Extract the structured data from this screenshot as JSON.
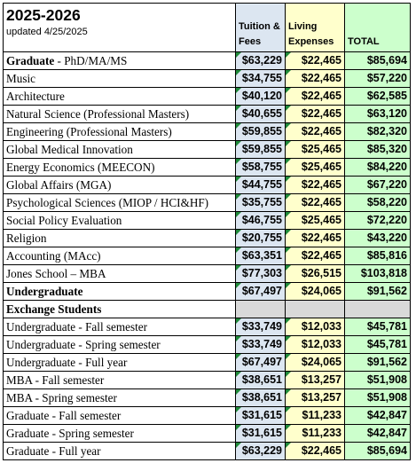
{
  "header": {
    "title": "2025-2026",
    "subtitle": "updated 4/25/2025",
    "col_tuition": [
      "Tuition &",
      "Fees"
    ],
    "col_living": [
      "Living",
      "Expenses"
    ],
    "col_total": "TOTAL"
  },
  "colors": {
    "tuition_bg": "#dce6f1",
    "living_bg": "#ffffcc",
    "total_bg": "#ccffcc",
    "empty_bg": "#d9d9d9",
    "error_marker": "#1f8a3a"
  },
  "rows": [
    {
      "name": "Graduate",
      "suffix": " - PhD/MA/MS",
      "tuition": "$63,229",
      "living": "$22,465",
      "total": "$85,694",
      "bold": "prefix"
    },
    {
      "name": "Music",
      "tuition": "$34,755",
      "living": "$22,465",
      "total": "$57,220"
    },
    {
      "name": "Architecture",
      "tuition": "$40,120",
      "living": "$22,465",
      "total": "$62,585"
    },
    {
      "name": "Natural Science (Professional Masters)",
      "tuition": "$40,655",
      "living": "$22,465",
      "total": "$63,120"
    },
    {
      "name": "Engineering (Professional Masters)",
      "tuition": "$59,855",
      "living": "$22,465",
      "total": "$82,320"
    },
    {
      "name": "Global Medical Innovation",
      "tuition": "$59,855",
      "living": "$25,465",
      "total": "$85,320"
    },
    {
      "name": "Energy Economics (MEECON)",
      "tuition": "$58,755",
      "living": "$25,465",
      "total": "$84,220"
    },
    {
      "name": "Global Affairs (MGA)",
      "tuition": "$44,755",
      "living": "$22,465",
      "total": "$67,220"
    },
    {
      "name": "Psychological Sciences (MIOP / HCI&HF)",
      "tuition": "$35,755",
      "living": "$22,465",
      "total": "$58,220"
    },
    {
      "name": "Social Policy Evaluation",
      "tuition": "$46,755",
      "living": "$25,465",
      "total": "$72,220"
    },
    {
      "name": "Religion",
      "tuition": "$20,755",
      "living": "$22,465",
      "total": "$43,220"
    },
    {
      "name": "Accounting (MAcc)",
      "tuition": "$63,351",
      "living": "$22,465",
      "total": "$85,816"
    },
    {
      "name": "Jones School – MBA",
      "tuition": "$77,303",
      "living": "$26,515",
      "total": "$103,818"
    },
    {
      "name": "Undergraduate",
      "tuition": "$67,497",
      "living": "$24,065",
      "total": "$91,562",
      "bold": "all"
    },
    {
      "name": "Exchange Students",
      "tuition": "",
      "living": "",
      "total": "",
      "bold": "all",
      "section": true
    },
    {
      "name": "Undergraduate - Fall semester",
      "tuition": "$33,749",
      "living": "$12,033",
      "total": "$45,781"
    },
    {
      "name": "Undergraduate - Spring semester",
      "tuition": "$33,749",
      "living": "$12,033",
      "total": "$45,781"
    },
    {
      "name": "Undergraduate - Full year",
      "tuition": "$67,497",
      "living": "$24,065",
      "total": "$91,562"
    },
    {
      "name": "MBA - Fall semester",
      "tuition": "$38,651",
      "living": "$13,257",
      "total": "$51,908"
    },
    {
      "name": "MBA - Spring semester",
      "tuition": "$38,651",
      "living": "$13,257",
      "total": "$51,908"
    },
    {
      "name": "Graduate - Fall semester",
      "tuition": "$31,615",
      "living": "$11,233",
      "total": "$42,847"
    },
    {
      "name": "Graduate - Spring semester",
      "tuition": "$31,615",
      "living": "$11,233",
      "total": "$42,847"
    },
    {
      "name": "Graduate - Full year",
      "tuition": "$63,229",
      "living": "$22,465",
      "total": "$85,694"
    }
  ]
}
